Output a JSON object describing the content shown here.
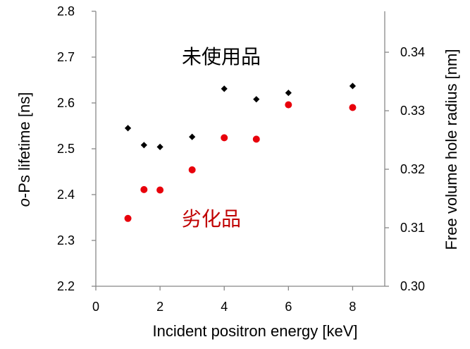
{
  "chart_data": {
    "type": "scatter",
    "xlabel": "Incident positron energy [keV]",
    "ylabel_left_prefix": "o",
    "ylabel_left_rest": "-Ps lifetime [ns]",
    "ylabel_right": "Free volume hole radius [nm]",
    "xlim": [
      0,
      9
    ],
    "ylim_left": [
      2.2,
      2.8
    ],
    "ylim_right": [
      0.3,
      0.347
    ],
    "x_ticks": [
      0,
      2,
      4,
      6,
      8
    ],
    "x_tick_labels": [
      "0",
      "2",
      "4",
      "6",
      "8"
    ],
    "y_left_ticks": [
      2.2,
      2.3,
      2.4,
      2.5,
      2.6,
      2.7,
      2.8
    ],
    "y_left_tick_labels": [
      "2.2",
      "2.3",
      "2.4",
      "2.5",
      "2.6",
      "2.7",
      "2.8"
    ],
    "y_right_ticks": [
      0.3,
      0.31,
      0.32,
      0.33,
      0.34
    ],
    "y_right_tick_labels": [
      "0.30",
      "0.31",
      "0.32",
      "0.33",
      "0.34"
    ],
    "grid": false,
    "series": [
      {
        "name": "未使用品",
        "marker": "diamond",
        "color": "#000000",
        "x": [
          1,
          1.5,
          2,
          3,
          4,
          5,
          6,
          8
        ],
        "y": [
          2.545,
          2.508,
          2.504,
          2.526,
          2.631,
          2.608,
          2.622,
          2.637
        ]
      },
      {
        "name": "劣化品",
        "marker": "circle",
        "color": "#e8000b",
        "x": [
          1,
          1.5,
          2,
          3,
          4,
          5,
          6,
          8
        ],
        "y": [
          2.348,
          2.411,
          2.41,
          2.454,
          2.524,
          2.521,
          2.596,
          2.59
        ]
      }
    ],
    "annotations": [
      {
        "text": "未使用品",
        "color": "#000000"
      },
      {
        "text": "劣化品",
        "color": "#c00000"
      }
    ]
  }
}
